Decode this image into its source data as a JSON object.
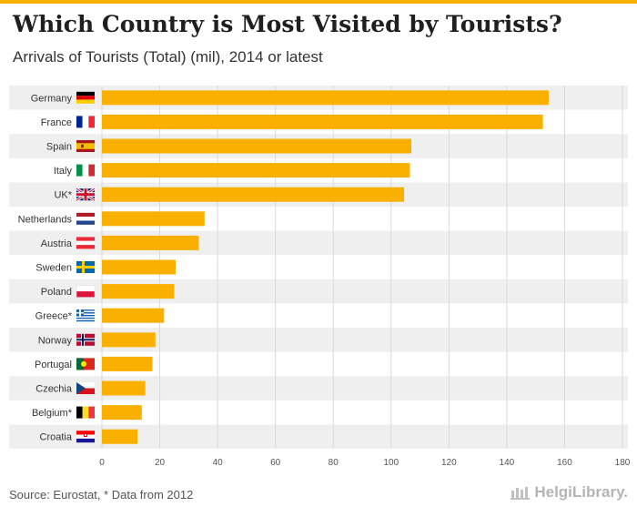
{
  "header": {
    "title": "Which Country is Most Visited by Tourists?",
    "subtitle": "Arrivals of Tourists (Total) (mil), 2014 or latest"
  },
  "footer": {
    "source": "Source: Eurostat, * Data from 2012",
    "logo_text": "HelgiLibrary."
  },
  "colors": {
    "bar": "#f9b000",
    "stripe": "#efefef",
    "grid": "#d9d9d9"
  },
  "chart_data": {
    "type": "bar",
    "orientation": "horizontal",
    "title": "Which Country is Most Visited by Tourists?",
    "subtitle": "Arrivals of Tourists (Total) (mil), 2014 or latest",
    "xlabel": "",
    "ylabel": "",
    "xlim": [
      0,
      180
    ],
    "xticks": [
      0,
      20,
      40,
      60,
      80,
      100,
      120,
      140,
      160,
      180
    ],
    "grid": true,
    "categories": [
      "Germany",
      "France",
      "Spain",
      "Italy",
      "UK*",
      "Netherlands",
      "Austria",
      "Sweden",
      "Poland",
      "Greece*",
      "Norway",
      "Portugal",
      "Czechia",
      "Belgium*",
      "Croatia"
    ],
    "flags": [
      "germany-flag-icon",
      "france-flag-icon",
      "spain-flag-icon",
      "italy-flag-icon",
      "uk-flag-icon",
      "netherlands-flag-icon",
      "austria-flag-icon",
      "sweden-flag-icon",
      "poland-flag-icon",
      "greece-flag-icon",
      "norway-flag-icon",
      "portugal-flag-icon",
      "czechia-flag-icon",
      "belgium-flag-icon",
      "croatia-flag-icon"
    ],
    "values": [
      154.5,
      152.5,
      107.0,
      106.5,
      104.5,
      35.5,
      33.5,
      25.5,
      25.0,
      21.5,
      18.5,
      17.5,
      15.0,
      13.8,
      12.3
    ]
  }
}
